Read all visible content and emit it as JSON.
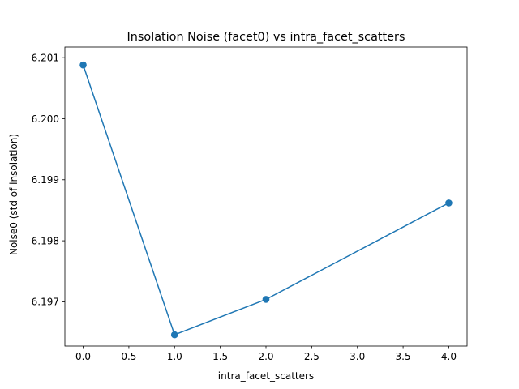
{
  "chart_data": {
    "type": "line",
    "title": "Insolation Noise (facet0) vs intra_facet_scatters",
    "xlabel": "intra_facet_scatters",
    "ylabel": "Noise0 (std of insolation)",
    "xlim": [
      -0.2,
      4.2
    ],
    "ylim": [
      6.196275,
      6.201175
    ],
    "xticks": [
      "0.0",
      "0.5",
      "1.0",
      "1.5",
      "2.0",
      "2.5",
      "3.0",
      "3.5",
      "4.0"
    ],
    "yticks": [
      "6.197",
      "6.198",
      "6.199",
      "6.200",
      "6.201"
    ],
    "grid": false,
    "series": [
      {
        "x": [
          0,
          1,
          2,
          4
        ],
        "y": [
          6.20088,
          6.19646,
          6.19704,
          6.19862
        ],
        "color": "#1f77b4",
        "marker": "circle"
      }
    ]
  }
}
